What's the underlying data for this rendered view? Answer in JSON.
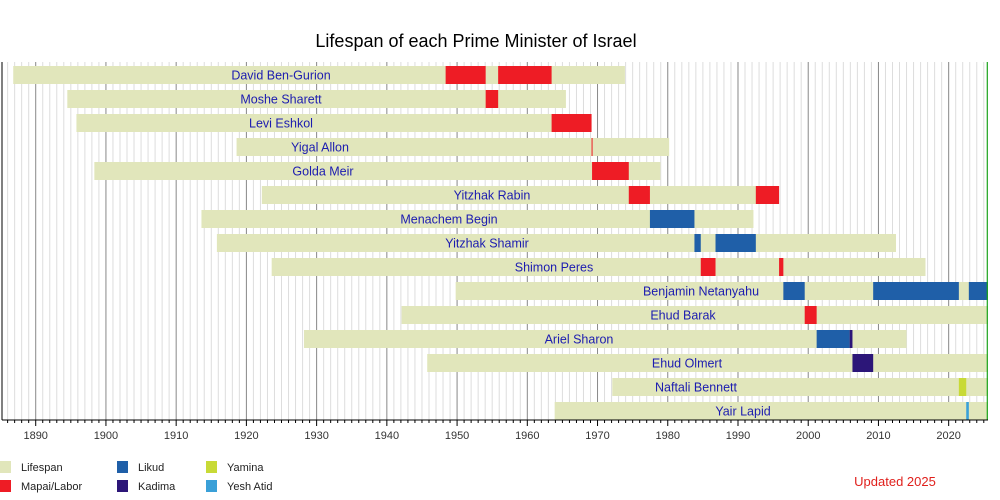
{
  "chart_data": {
    "type": "timeline",
    "title": "Lifespan of each Prime Minister of Israel",
    "note": "Updated 2025",
    "xlim": [
      1885.2,
      2025.6
    ],
    "xticks": [
      1890,
      1900,
      1910,
      1920,
      1930,
      1940,
      1950,
      1960,
      1970,
      1980,
      1990,
      2000,
      2010,
      2020
    ],
    "grid": "yearly vertical lines, darker every decade",
    "current_marker": 2025.5,
    "legend": [
      {
        "key": "lifespan",
        "label": "Lifespan",
        "color": "#e1e6bb"
      },
      {
        "key": "labor",
        "label": "Mapai/Labor",
        "color": "#ee1c25"
      },
      {
        "key": "likud",
        "label": "Likud",
        "color": "#1f5fa8"
      },
      {
        "key": "kadima",
        "label": "Kadima",
        "color": "#2c1678"
      },
      {
        "key": "yamina",
        "label": "Yamina",
        "color": "#c8da36"
      },
      {
        "key": "yeshatid",
        "label": "Yesh Atid",
        "color": "#3aa0d8"
      }
    ],
    "rows": [
      {
        "name": "David Ben-Gurion",
        "life": [
          1886.8,
          1973.9
        ],
        "terms": [
          [
            "labor",
            1948.37,
            1954.07
          ],
          [
            "labor",
            1955.85,
            1963.46
          ]
        ]
      },
      {
        "name": "Moshe Sharett",
        "life": [
          1894.5,
          1965.5
        ],
        "terms": [
          [
            "labor",
            1954.07,
            1955.85
          ]
        ]
      },
      {
        "name": "Levi Eshkol",
        "life": [
          1895.8,
          1969.15
        ],
        "terms": [
          [
            "labor",
            1963.46,
            1969.15
          ]
        ]
      },
      {
        "name": "Yigal Allon",
        "life": [
          1918.6,
          1980.2
        ],
        "terms": [
          [
            "labor",
            1969.15,
            1969.22
          ]
        ]
      },
      {
        "name": "Golda Meir",
        "life": [
          1898.35,
          1978.95
        ],
        "terms": [
          [
            "labor",
            1969.22,
            1974.45
          ]
        ]
      },
      {
        "name": "Yitzhak Rabin",
        "life": [
          1922.2,
          1995.85
        ],
        "terms": [
          [
            "labor",
            1974.45,
            1977.46
          ],
          [
            "labor",
            1992.54,
            1995.85
          ]
        ]
      },
      {
        "name": "Menachem Begin",
        "life": [
          1913.6,
          1992.2
        ],
        "terms": [
          [
            "likud",
            1977.46,
            1983.8
          ]
        ]
      },
      {
        "name": "Yitzhak Shamir",
        "life": [
          1915.8,
          2012.5
        ],
        "terms": [
          [
            "likud",
            1983.8,
            1984.7
          ],
          [
            "likud",
            1986.8,
            1992.54
          ]
        ]
      },
      {
        "name": "Shimon Peres",
        "life": [
          1923.6,
          2016.7
        ],
        "terms": [
          [
            "labor",
            1984.7,
            1986.8
          ],
          [
            "labor",
            1995.85,
            1996.46
          ]
        ]
      },
      {
        "name": "Benjamin Netanyahu",
        "life": [
          1949.8,
          2025.6
        ],
        "terms": [
          [
            "likud",
            1996.46,
            1999.5
          ],
          [
            "likud",
            2009.25,
            2021.45
          ],
          [
            "likud",
            2022.87,
            2025.6
          ]
        ]
      },
      {
        "name": "Ehud Barak",
        "life": [
          1942.1,
          2025.6
        ],
        "terms": [
          [
            "labor",
            1999.5,
            2001.2
          ]
        ]
      },
      {
        "name": "Ariel Sharon",
        "life": [
          1928.2,
          2014.0
        ],
        "terms": [
          [
            "likud",
            2001.2,
            2005.9
          ],
          [
            "kadima",
            2005.9,
            2006.3
          ]
        ]
      },
      {
        "name": "Ehud Olmert",
        "life": [
          1945.75,
          2025.6
        ],
        "terms": [
          [
            "kadima",
            2006.3,
            2009.25
          ]
        ]
      },
      {
        "name": "Naftali Bennett",
        "life": [
          1972.1,
          2025.6
        ],
        "terms": [
          [
            "yamina",
            2021.45,
            2022.5
          ]
        ]
      },
      {
        "name": "Yair Lapid",
        "life": [
          1963.9,
          2025.6
        ],
        "terms": [
          [
            "yeshatid",
            2022.5,
            2022.87
          ]
        ]
      }
    ]
  }
}
